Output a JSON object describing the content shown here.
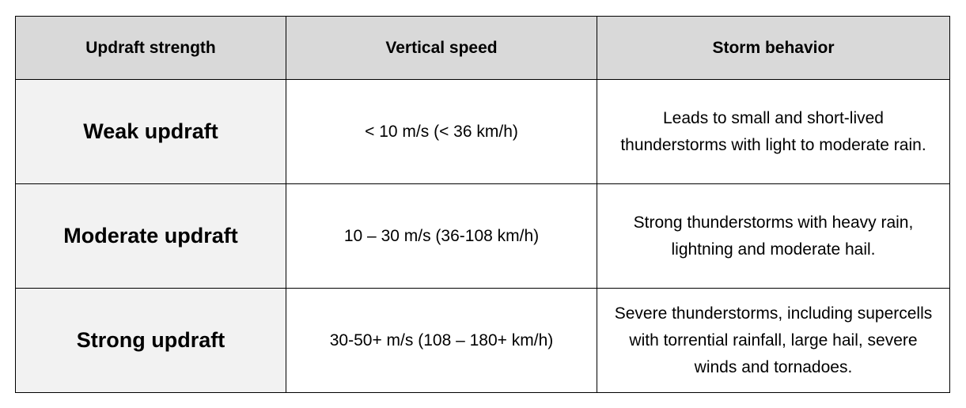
{
  "table": {
    "headers": [
      "Updraft strength",
      "Vertical speed",
      "Storm behavior"
    ],
    "rows": [
      {
        "strength": "Weak updraft",
        "speed": "< 10 m/s (< 36 km/h)",
        "behavior": "Leads to small and short-lived thunderstorms with light to moderate rain."
      },
      {
        "strength": "Moderate updraft",
        "speed": "10 – 30 m/s (36-108 km/h)",
        "behavior": "Strong thunderstorms with heavy rain, lightning and moderate hail."
      },
      {
        "strength": "Strong updraft",
        "speed": "30-50+ m/s (108 – 180+ km/h)",
        "behavior": "Severe thunderstorms, including supercells with torrential rainfall, large hail, severe winds and tornadoes."
      }
    ]
  },
  "colors": {
    "header_bg": "#d9d9d9",
    "first_column_bg": "#f2f2f2",
    "border": "#000000"
  }
}
